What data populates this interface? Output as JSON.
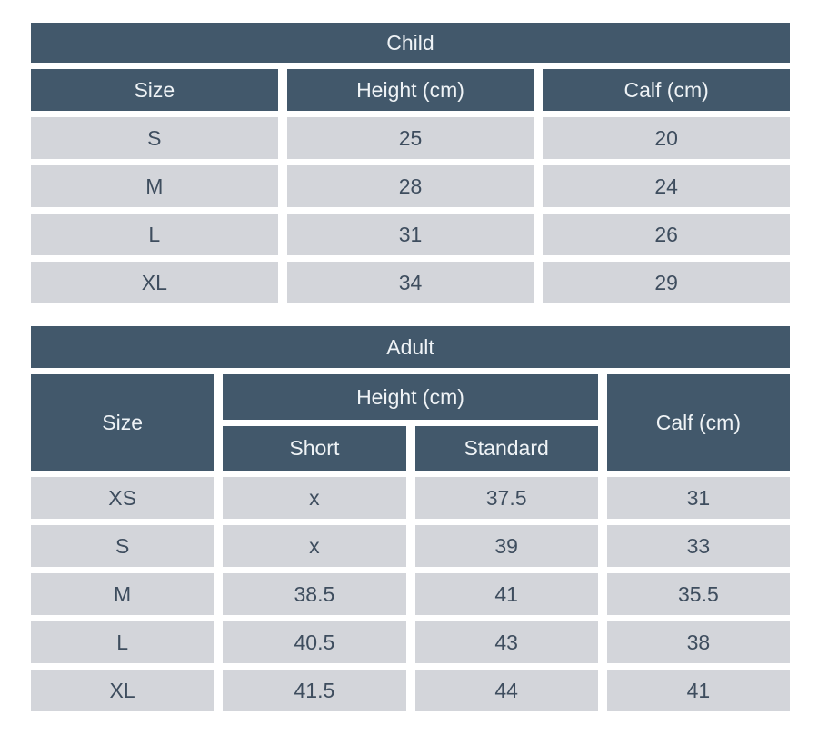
{
  "colors": {
    "header_bg": "#42586b",
    "header_text": "#eff3f6",
    "cell_bg": "#d3d5da",
    "cell_text": "#3e4d5e",
    "gap": "#ffffff"
  },
  "child_table": {
    "title": "Child",
    "columns": {
      "size": "Size",
      "height": "Height (cm)",
      "calf": "Calf (cm)"
    },
    "rows": [
      {
        "size": "S",
        "height": "25",
        "calf": "20"
      },
      {
        "size": "M",
        "height": "28",
        "calf": "24"
      },
      {
        "size": "L",
        "height": "31",
        "calf": "26"
      },
      {
        "size": "XL",
        "height": "34",
        "calf": "29"
      }
    ]
  },
  "adult_table": {
    "title": "Adult",
    "columns": {
      "size": "Size",
      "height_group": "Height (cm)",
      "short": "Short",
      "standard": "Standard",
      "calf": "Calf (cm)"
    },
    "rows": [
      {
        "size": "XS",
        "short": "x",
        "standard": "37.5",
        "calf": "31"
      },
      {
        "size": "S",
        "short": "x",
        "standard": "39",
        "calf": "33"
      },
      {
        "size": "M",
        "short": "38.5",
        "standard": "41",
        "calf": "35.5"
      },
      {
        "size": "L",
        "short": "40.5",
        "standard": "43",
        "calf": "38"
      },
      {
        "size": "XL",
        "short": "41.5",
        "standard": "44",
        "calf": "41"
      }
    ]
  }
}
